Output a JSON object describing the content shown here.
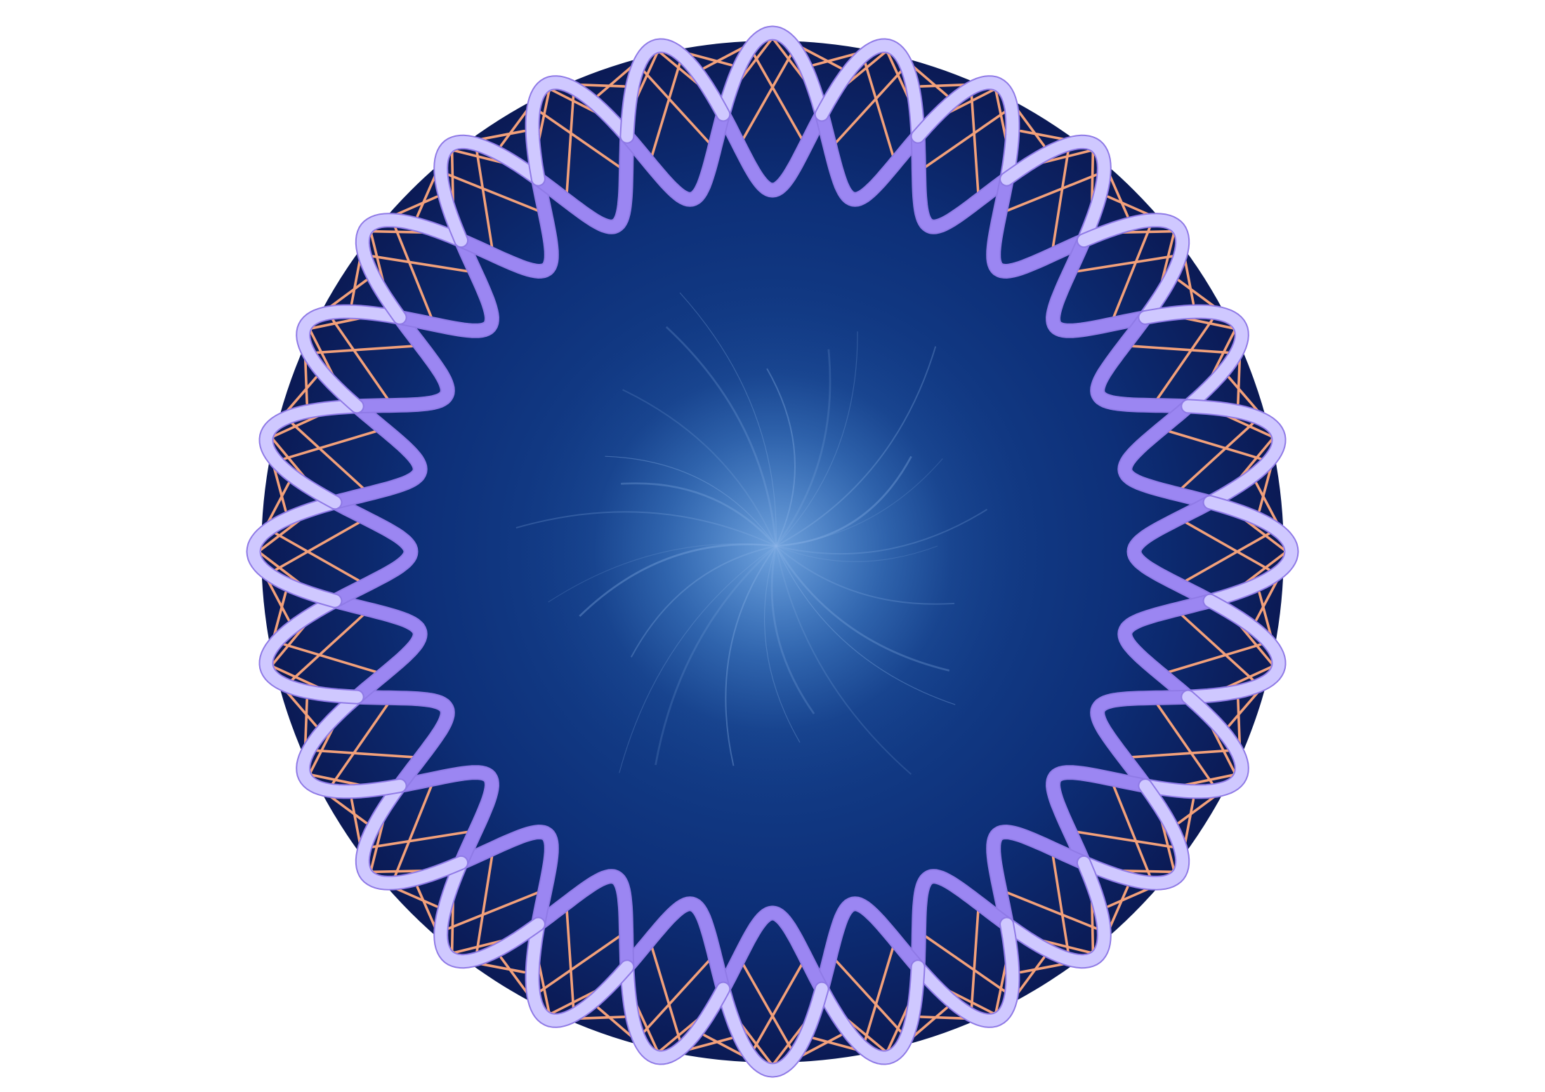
{
  "subject": "circular-dna-plasmid",
  "counts": {
    "twists": 14
  },
  "colors": {
    "page_background": "#ffffff",
    "disc_outer": "#0b1a55",
    "disc_mid": "#0d2f78",
    "disc_center_glow": "#3f7fc8",
    "strand_front": "#cfc8ff",
    "strand_back": "#9b86f2",
    "strand_edge": "#8f7ae6",
    "base_pair": "#f2a07a",
    "starburst": "#8fb6ea"
  },
  "icons": {
    "disc": "circle-shape",
    "helix": "double-helix-ring",
    "glow": "starburst-glow"
  }
}
